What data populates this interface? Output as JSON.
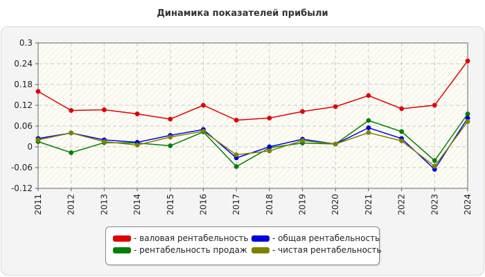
{
  "chart_data": {
    "type": "line",
    "title": "Динамика показателей прибыли",
    "categories": [
      "2011",
      "2012",
      "2013",
      "2014",
      "2015",
      "2016",
      "2017",
      "2018",
      "2019",
      "2020",
      "2021",
      "2022",
      "2023",
      "2024"
    ],
    "ylim": [
      -0.12,
      0.3
    ],
    "yticks": [
      -0.12,
      -0.06,
      0,
      0.06,
      0.12,
      0.18,
      0.24,
      0.3
    ],
    "ytick_labels": [
      "-0.12",
      "-0.06",
      "0",
      "0.06",
      "0.12",
      "0.18",
      "0.24",
      "0.3"
    ],
    "grid": true,
    "legend_position": "bottom",
    "series": [
      {
        "name": "- валовая рентабельность",
        "color": "#e00000",
        "values": [
          0.16,
          0.105,
          0.107,
          0.095,
          0.08,
          0.12,
          0.077,
          0.083,
          0.102,
          0.116,
          0.148,
          0.11,
          0.12,
          0.248
        ]
      },
      {
        "name": "- рентабельность продаж",
        "color": "#008000",
        "values": [
          0.015,
          -0.017,
          0.012,
          0.011,
          0.003,
          0.043,
          -0.057,
          -0.003,
          0.011,
          0.008,
          0.076,
          0.044,
          -0.04,
          0.095
        ]
      },
      {
        "name": "- общая рентабельность",
        "color": "#0000e0",
        "values": [
          0.024,
          0.04,
          0.02,
          0.013,
          0.033,
          0.05,
          -0.032,
          0.0,
          0.022,
          0.008,
          0.055,
          0.024,
          -0.065,
          0.083
        ]
      },
      {
        "name": "- чистая рентабельность",
        "color": "#808000",
        "values": [
          0.02,
          0.04,
          0.015,
          0.005,
          0.028,
          0.045,
          -0.023,
          -0.012,
          0.018,
          0.008,
          0.041,
          0.017,
          -0.056,
          0.073
        ]
      }
    ]
  },
  "legend": {
    "items": [
      {
        "label": "- валовая рентабельность",
        "color": "#e00000"
      },
      {
        "label": "- общая рентабельность",
        "color": "#0000e0"
      },
      {
        "label": "- рентабельность продаж",
        "color": "#008000"
      },
      {
        "label": "- чистая рентабельность",
        "color": "#808000"
      }
    ]
  }
}
